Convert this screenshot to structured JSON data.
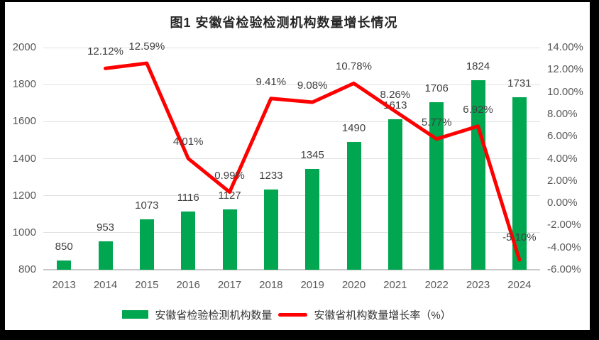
{
  "title": "图1 安徽省检验检测机构数量增长情况",
  "legend": {
    "bar_label": "安徽省检验检测机构数量",
    "line_label": "安徽省机构数量增长率（%）"
  },
  "colors": {
    "bar": "#00A650",
    "line": "#FF0000",
    "grid": "#E2E2E2",
    "axis_line": "#C9C9C9",
    "axis_text": "#595959",
    "data_label_text": "#404040",
    "title_text": "#262626",
    "frame": "#000000",
    "background": "#FFFFFF"
  },
  "chart_data": {
    "type": "bar",
    "subtype": "combo bar + line, dual axis",
    "title": "图1 安徽省检验检测机构数量增长情况",
    "categories": [
      "2013",
      "2014",
      "2015",
      "2016",
      "2017",
      "2018",
      "2019",
      "2020",
      "2021",
      "2022",
      "2023",
      "2024"
    ],
    "series": [
      {
        "name": "安徽省检验检测机构数量",
        "type": "bar",
        "axis": "left",
        "values": [
          850,
          953,
          1073,
          1116,
          1127,
          1233,
          1345,
          1490,
          1613,
          1706,
          1824,
          1731
        ],
        "labels": [
          "850",
          "953",
          "1073",
          "1116",
          "1127",
          "1233",
          "1345",
          "1490",
          "1613",
          "1706",
          "1824",
          "1731"
        ],
        "color": "#00A650"
      },
      {
        "name": "安徽省机构数量增长率（%）",
        "type": "line",
        "axis": "right",
        "values": [
          null,
          12.12,
          12.59,
          4.01,
          0.99,
          9.41,
          9.08,
          10.78,
          8.26,
          5.77,
          6.92,
          -5.1
        ],
        "labels": [
          null,
          "12.12%",
          "12.59%",
          "4.01%",
          "0.99%",
          "9.41%",
          "9.08%",
          "10.78%",
          "8.26%",
          "5.77%",
          "6.92%",
          "-5.10%"
        ],
        "color": "#FF0000"
      }
    ],
    "left_axis": {
      "min": 800,
      "max": 2000,
      "step": 200,
      "tick_labels": [
        "800",
        "1000",
        "1200",
        "1400",
        "1600",
        "1800",
        "2000"
      ]
    },
    "right_axis": {
      "min": -6,
      "max": 14,
      "step": 2,
      "tick_labels": [
        "-6.00%",
        "-4.00%",
        "-2.00%",
        "0.00%",
        "2.00%",
        "4.00%",
        "6.00%",
        "8.00%",
        "10.00%",
        "12.00%",
        "14.00%"
      ]
    },
    "grid": "horizontal gridlines from primary (left) axis",
    "legend_position": "bottom center",
    "data_labels": "shown above bars and above line points"
  }
}
